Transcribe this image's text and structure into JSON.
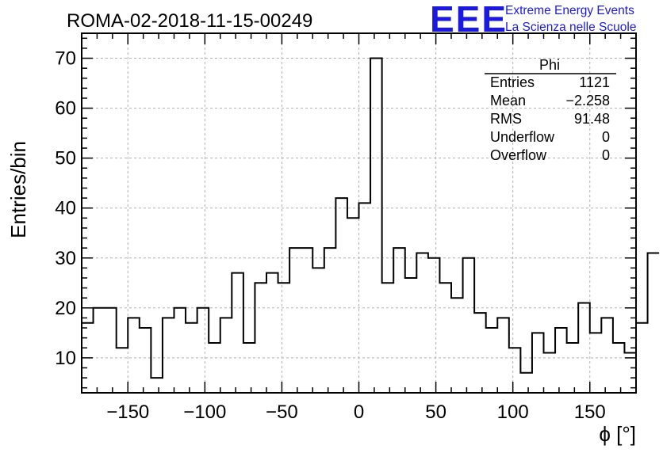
{
  "logo": {
    "mark": "EEE",
    "line1": "Extreme Energy Events",
    "line2": "La Scienza nelle Scuole",
    "color": "#1a1adf"
  },
  "stats": {
    "name": "Phi",
    "rows": [
      {
        "label": "Entries",
        "value": "1121"
      },
      {
        "label": "Mean",
        "value": "−2.258"
      },
      {
        "label": "RMS",
        "value": "91.48"
      },
      {
        "label": "Underflow",
        "value": "0"
      },
      {
        "label": "Overflow",
        "value": "0"
      }
    ]
  },
  "chart_data": {
    "type": "histogram",
    "title": "ROMA-02-2018-11-15-00249",
    "xlabel": "ϕ [°]",
    "ylabel": "Entries/bin",
    "xlim": [
      -180,
      180
    ],
    "ylim": [
      3,
      75
    ],
    "grid": true,
    "bin_width": 7.5,
    "x_ticks": [
      -150,
      -100,
      -50,
      0,
      50,
      100,
      150
    ],
    "x_tick_labels": [
      "−150",
      "−100",
      "−50",
      "0",
      "50",
      "100",
      "150"
    ],
    "y_ticks": [
      10,
      20,
      30,
      40,
      50,
      60,
      70
    ],
    "y_tick_labels": [
      "10",
      "20",
      "30",
      "40",
      "50",
      "60",
      "70"
    ],
    "bin_edges_start": -180,
    "values": [
      17,
      20,
      20,
      12,
      18,
      16,
      6,
      18,
      20,
      17,
      20,
      13,
      18,
      27,
      13,
      25,
      27,
      25,
      32,
      32,
      28,
      32,
      42,
      38,
      41,
      70,
      25,
      32,
      26,
      31,
      30,
      25,
      22,
      30,
      19,
      16,
      18,
      12,
      7,
      15,
      11,
      16,
      13,
      21,
      15,
      18,
      13,
      11,
      17,
      31
    ]
  }
}
